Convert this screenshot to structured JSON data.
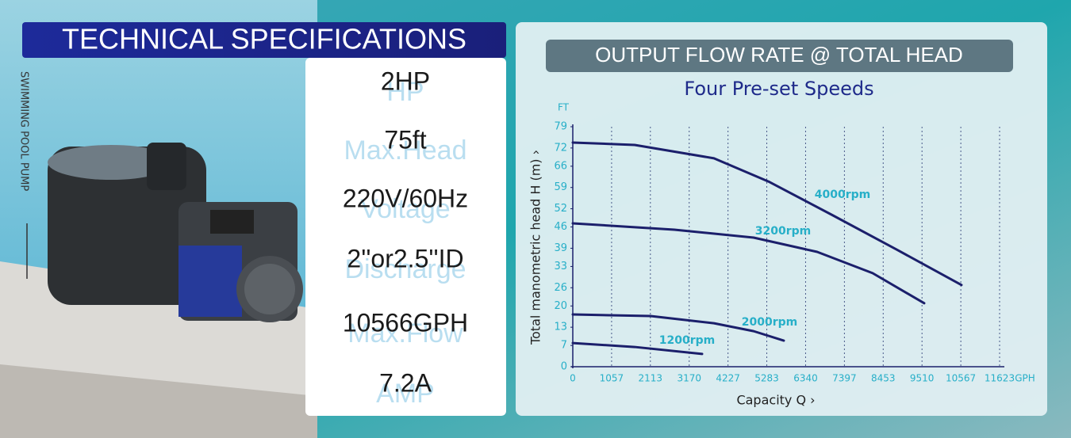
{
  "header": {
    "title": "TECHNICAL SPECIFICATIONS",
    "side_label": "SWIMMING POOL PUMP"
  },
  "specs": [
    {
      "value": "2HP",
      "label": "HP"
    },
    {
      "value": "75ft",
      "label": "Max.Head"
    },
    {
      "value": "220V/60Hz",
      "label": "Voltage"
    },
    {
      "value": "2''or2.5''ID",
      "label": "Discharge"
    },
    {
      "value": "10566GPH",
      "label": "Max.Flow"
    },
    {
      "value": "7.2A",
      "label": "AMP"
    }
  ],
  "chart_data": {
    "type": "line",
    "title": "OUTPUT FLOW RATE @ TOTAL HEAD",
    "subtitle": "Four Pre-set Speeds",
    "y_unit": "FT",
    "x_unit": "GPH",
    "ylabel": "Total manometric head H (m) ›",
    "xlabel": "Capacity Q ›",
    "xlim": [
      0,
      11623
    ],
    "ylim": [
      0,
      79
    ],
    "xticks": [
      0,
      1057,
      2113,
      3170,
      4227,
      5283,
      6340,
      7397,
      8453,
      9510,
      10567,
      11623
    ],
    "yticks": [
      0,
      7,
      13,
      20,
      26,
      33,
      39,
      46,
      52,
      59,
      66,
      72,
      79
    ],
    "grid": true,
    "label_color": "#27afc8",
    "series": [
      {
        "name": "4000rpm",
        "color": "#1b1f6b",
        "x": [
          0,
          1685,
          3845,
          5357,
          7086,
          8814,
          10585
        ],
        "values": [
          73.8,
          73,
          68.6,
          60.8,
          49.8,
          38.6,
          26.9
        ]
      },
      {
        "name": "3200rpm",
        "color": "#1b1f6b",
        "x": [
          0,
          2765,
          4925,
          6654,
          8166,
          9570
        ],
        "values": [
          47.2,
          45.1,
          42.5,
          37.8,
          30.8,
          20.9
        ]
      },
      {
        "name": "2000rpm",
        "color": "#1b1f6b",
        "x": [
          0,
          2117,
          3845,
          4925,
          5746
        ],
        "values": [
          17.2,
          16.7,
          14.3,
          11.7,
          8.6
        ]
      },
      {
        "name": "1200rpm",
        "color": "#1b1f6b",
        "x": [
          0,
          1685,
          3521
        ],
        "values": [
          7.8,
          6.5,
          4.2
        ]
      }
    ]
  }
}
